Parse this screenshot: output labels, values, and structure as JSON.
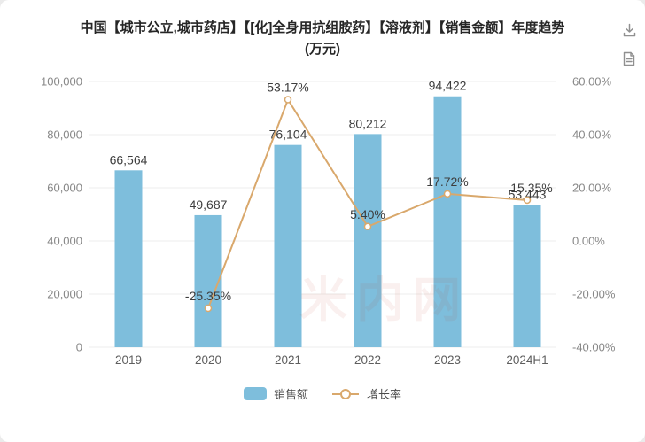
{
  "title": {
    "line1": "中国【城市公立,城市药店】【[化]全身用抗组胺药】【溶液剂】【销售金额】年度趋势",
    "unit": "(万元)"
  },
  "header_icons": {
    "download": "download-icon",
    "report": "document-icon"
  },
  "watermark": {
    "text": "米内网",
    "color": "#c0392b"
  },
  "colors": {
    "bar": "#7ebedc",
    "line": "#d9a86c",
    "grid": "#ededed",
    "axis_text": "#878787",
    "data_label": "#3d3d3d"
  },
  "chart_data": {
    "type": "bar",
    "subtype": "bar+line combo",
    "title": "中国【城市公立,城市药店】【[化]全身用抗组胺药】【溶液剂】【销售金额】年度趋势(万元)",
    "categories": [
      "2019",
      "2020",
      "2021",
      "2022",
      "2023",
      "2024H1"
    ],
    "series": [
      {
        "name": "销售额",
        "type": "bar",
        "axis": "left",
        "color": "#7ebedc",
        "values": [
          66564,
          49687,
          76104,
          80212,
          94422,
          53443
        ],
        "labels": [
          "66,564",
          "49,687",
          "76,104",
          "80,212",
          "94,422",
          "53,443"
        ]
      },
      {
        "name": "增长率",
        "type": "line",
        "axis": "right",
        "color": "#d9a86c",
        "values": [
          null,
          -25.35,
          53.17,
          5.4,
          17.72,
          15.35
        ],
        "labels": [
          null,
          "-25.35%",
          "53.17%",
          "5.40%",
          "17.72%",
          "15.35%"
        ]
      }
    ],
    "left_axis": {
      "min": 0,
      "max": 100000,
      "ticks": [
        {
          "v": 100000,
          "label": "100,000"
        },
        {
          "v": 80000,
          "label": "80,000"
        },
        {
          "v": 60000,
          "label": "60,000"
        },
        {
          "v": 40000,
          "label": "40,000"
        },
        {
          "v": 20000,
          "label": "20,000"
        },
        {
          "v": 0,
          "label": "0"
        }
      ]
    },
    "right_axis": {
      "min": -40,
      "max": 60,
      "ticks": [
        {
          "v": 60,
          "label": "60.00%"
        },
        {
          "v": 40,
          "label": "40.00%"
        },
        {
          "v": 20,
          "label": "20.00%"
        },
        {
          "v": 0,
          "label": "0.00%"
        },
        {
          "v": -20,
          "label": "-20.00%"
        },
        {
          "v": -40,
          "label": "-40.00%"
        }
      ]
    },
    "grid": true,
    "legend_position": "bottom",
    "legend": [
      "销售额",
      "增长率"
    ]
  }
}
